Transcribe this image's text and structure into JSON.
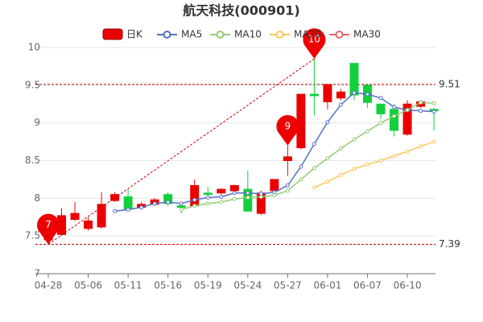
{
  "chart_data": {
    "type": "candlestick",
    "title": "航天科技(000901)",
    "candle_name": "日K",
    "up_color": "#eb0000",
    "down_color": "#14cf3c",
    "categories": [
      "04-28",
      null,
      null,
      "05-06",
      null,
      null,
      "05-11",
      null,
      null,
      "05-16",
      null,
      null,
      "05-19",
      null,
      null,
      "05-24",
      null,
      null,
      "05-27",
      null,
      null,
      "06-01",
      null,
      null,
      "06-07",
      null,
      null,
      "06-10",
      null,
      null
    ],
    "open": [
      7.45,
      7.52,
      7.72,
      7.6,
      7.62,
      7.97,
      8.02,
      7.88,
      7.92,
      8.05,
      7.9,
      7.9,
      8.07,
      8.07,
      8.1,
      8.12,
      7.8,
      8.1,
      8.5,
      8.67,
      9.38,
      9.28,
      9.33,
      9.79,
      9.5,
      9.25,
      9.18,
      8.85,
      9.22,
      9.18
    ],
    "close": [
      7.55,
      7.77,
      7.8,
      7.7,
      7.92,
      8.05,
      7.86,
      7.92,
      7.98,
      7.93,
      7.88,
      8.17,
      8.05,
      8.12,
      8.17,
      7.83,
      8.07,
      8.25,
      8.55,
      9.38,
      9.36,
      9.51,
      9.41,
      9.37,
      9.27,
      9.12,
      8.9,
      9.25,
      9.28,
      9.16
    ],
    "high": [
      7.6,
      7.87,
      7.95,
      7.75,
      8.08,
      8.08,
      8.12,
      7.95,
      8.0,
      8.08,
      7.92,
      8.25,
      8.15,
      8.13,
      8.18,
      8.37,
      8.1,
      8.25,
      8.7,
      9.38,
      9.85,
      9.51,
      9.45,
      9.79,
      9.52,
      9.25,
      9.25,
      9.3,
      9.3,
      9.2
    ],
    "low": [
      7.39,
      7.5,
      7.7,
      7.57,
      7.6,
      7.95,
      7.83,
      7.85,
      7.9,
      7.9,
      7.8,
      7.88,
      8.0,
      8.05,
      8.08,
      7.82,
      7.78,
      8.03,
      8.3,
      8.65,
      9.1,
      9.18,
      9.3,
      9.3,
      9.2,
      9.05,
      8.82,
      8.83,
      9.2,
      8.9
    ],
    "series": [
      {
        "name": "MA5",
        "color": "#5470c6",
        "values": [
          null,
          null,
          null,
          null,
          null,
          7.83,
          7.85,
          7.88,
          7.93,
          7.95,
          7.93,
          7.98,
          8.01,
          8.02,
          8.07,
          8.07,
          8.06,
          8.08,
          8.17,
          8.42,
          8.72,
          9.01,
          9.24,
          9.4,
          9.38,
          9.33,
          9.21,
          9.17,
          9.16,
          9.15
        ]
      },
      {
        "name": "MA10",
        "color": "#91cc75",
        "values": [
          null,
          null,
          null,
          null,
          null,
          null,
          null,
          null,
          null,
          null,
          7.85,
          7.9,
          7.93,
          7.95,
          7.99,
          8.01,
          8.02,
          8.04,
          8.1,
          8.25,
          8.4,
          8.53,
          8.66,
          8.78,
          8.89,
          9.0,
          9.09,
          9.17,
          9.27,
          9.26
        ]
      },
      {
        "name": "MA20",
        "color": "#fac858",
        "values": [
          null,
          null,
          null,
          null,
          null,
          null,
          null,
          null,
          null,
          null,
          null,
          null,
          null,
          null,
          null,
          null,
          null,
          null,
          null,
          null,
          8.14,
          8.22,
          8.31,
          8.39,
          8.45,
          8.5,
          8.56,
          8.62,
          8.69,
          8.75
        ]
      },
      {
        "name": "MA30",
        "color": "#ee6666",
        "values": [
          null,
          null,
          null,
          null,
          null,
          null,
          null,
          null,
          null,
          null,
          null,
          null,
          null,
          null,
          null,
          null,
          null,
          null,
          null,
          null,
          null,
          null,
          null,
          null,
          null,
          null,
          null,
          null,
          null,
          null
        ]
      }
    ],
    "ylim": [
      7,
      10
    ],
    "yticks": [
      7,
      7.5,
      8,
      8.5,
      9,
      9.5,
      10
    ],
    "grid": true,
    "mark_lines": [
      9.51,
      7.39
    ],
    "pins": [
      {
        "value": 9.85,
        "label": "10"
      },
      {
        "value": 8.7,
        "label": "9"
      },
      {
        "value": 7.39,
        "label": "7"
      }
    ]
  }
}
